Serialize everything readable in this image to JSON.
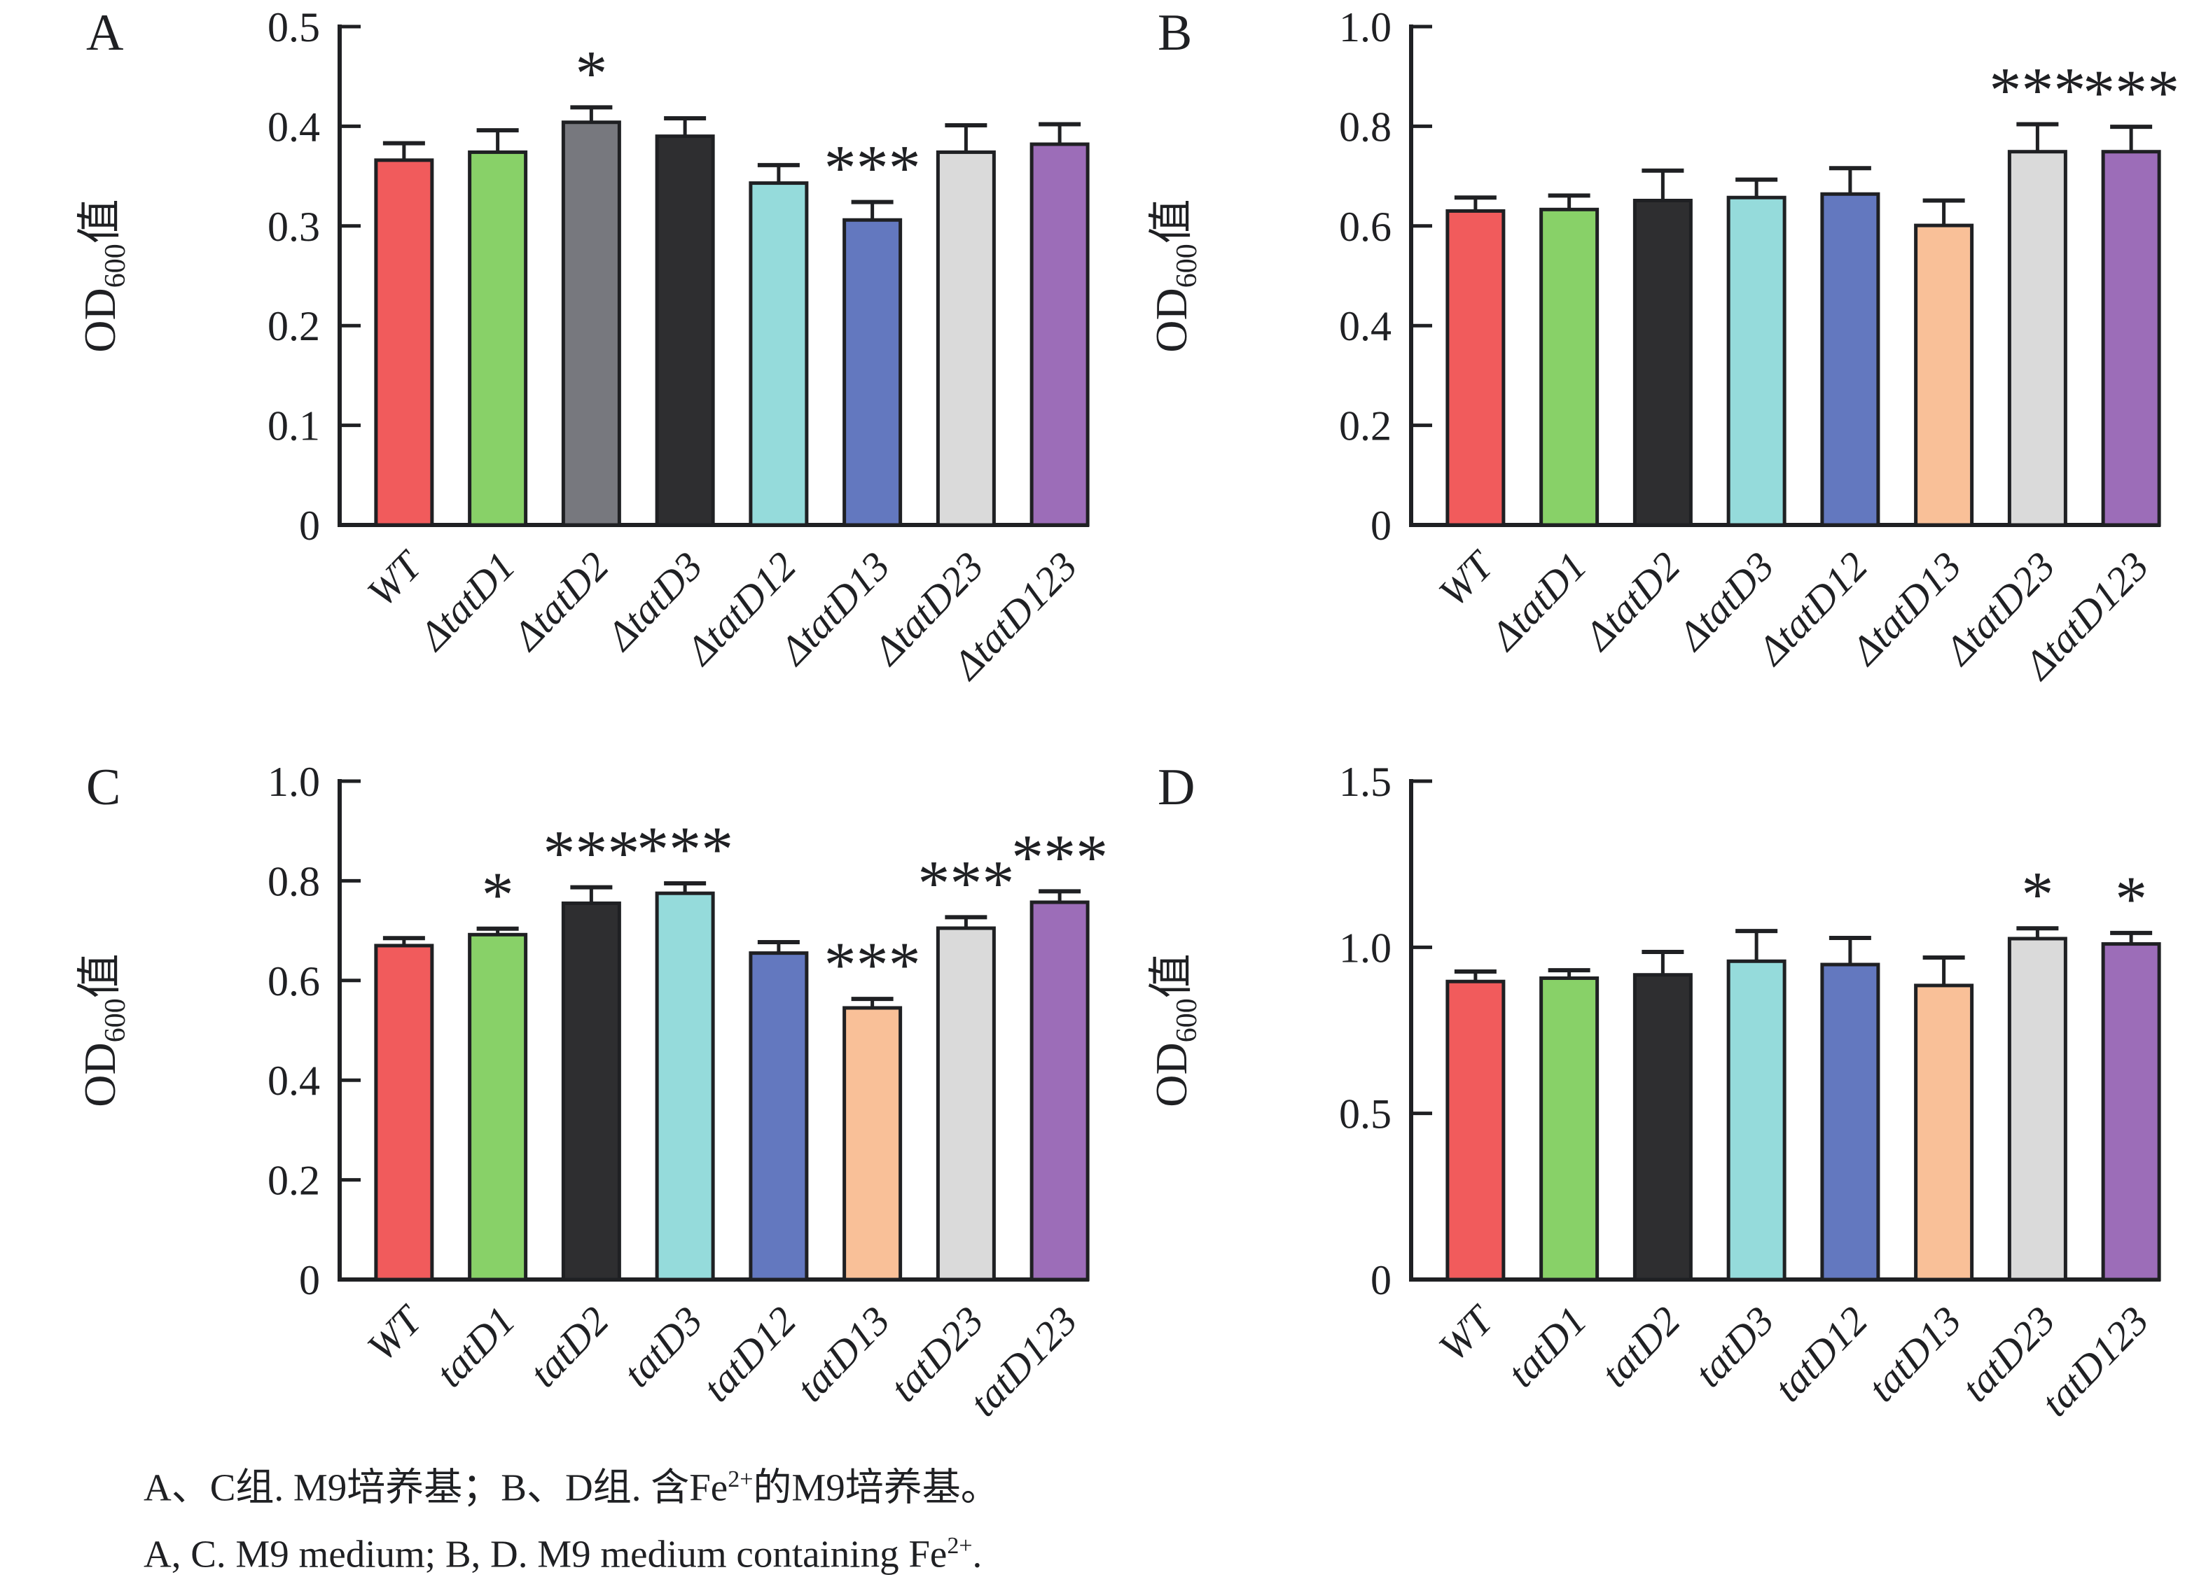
{
  "figure": {
    "ylabel_od": "OD",
    "ylabel_sub": "600",
    "ylabel_cjk": "值",
    "caption": {
      "line1_pre": "A、C组. M9培养基；B、D组. 含Fe",
      "line1_sup": "2+",
      "line1_post": "的M9培养基。",
      "line2_pre": "A, C. M9 medium; B, D. M9 medium containing Fe",
      "line2_sup": "2+",
      "line2_post": "."
    }
  },
  "chart_data": [
    {
      "panel_label": "A",
      "type": "bar",
      "title": "",
      "xlabel": "",
      "ylabel": "OD600值",
      "ylim": [
        0,
        0.5
      ],
      "ytick_values": [
        0,
        0.1,
        0.2,
        0.3,
        0.4,
        0.5
      ],
      "ytick_labels": [
        "0",
        "0.1",
        "0.2",
        "0.3",
        "0.4",
        "0.5"
      ],
      "grid": "off",
      "legend": "none",
      "categories": [
        "WT",
        "ΔtatD1",
        "ΔtatD2",
        "ΔtatD3",
        "ΔtatD12",
        "ΔtatD13",
        "ΔtatD23",
        "ΔtatD123"
      ],
      "values": [
        0.366,
        0.374,
        0.404,
        0.39,
        0.343,
        0.306,
        0.374,
        0.382
      ],
      "errors": [
        0.017,
        0.022,
        0.015,
        0.018,
        0.018,
        0.018,
        0.027,
        0.02
      ],
      "sig": [
        "",
        "",
        "*",
        "",
        "",
        "***",
        "",
        ""
      ],
      "bar_colors": [
        "#F15B5C",
        "#88D168",
        "#77787E",
        "#2E2E30",
        "#95DBDB",
        "#6378BF",
        "#DADADA",
        "#9C6DB8"
      ]
    },
    {
      "panel_label": "B",
      "type": "bar",
      "title": "",
      "xlabel": "",
      "ylabel": "OD600值",
      "ylim": [
        0,
        1.0
      ],
      "ytick_values": [
        0,
        0.2,
        0.4,
        0.6,
        0.8,
        1.0
      ],
      "ytick_labels": [
        "0",
        "0.2",
        "0.4",
        "0.6",
        "0.8",
        "1.0"
      ],
      "grid": "off",
      "legend": "none",
      "categories": [
        "WT",
        "ΔtatD1",
        "ΔtatD2",
        "ΔtatD3",
        "ΔtatD12",
        "ΔtatD13",
        "ΔtatD23",
        "ΔtatD123"
      ],
      "values": [
        0.63,
        0.633,
        0.651,
        0.657,
        0.664,
        0.601,
        0.749,
        0.749
      ],
      "errors": [
        0.027,
        0.028,
        0.06,
        0.036,
        0.052,
        0.05,
        0.055,
        0.05
      ],
      "sig": [
        "",
        "",
        "",
        "",
        "",
        "",
        "***",
        "***"
      ],
      "bar_colors": [
        "#F15B5C",
        "#88D168",
        "#2E2E30",
        "#95DBDB",
        "#6378BF",
        "#F9C098",
        "#DADADA",
        "#9C6DB8"
      ]
    },
    {
      "panel_label": "C",
      "type": "bar",
      "title": "",
      "xlabel": "",
      "ylabel": "OD600值",
      "ylim": [
        0,
        1.0
      ],
      "ytick_values": [
        0,
        0.2,
        0.4,
        0.6,
        0.8,
        1.0
      ],
      "ytick_labels": [
        "0",
        "0.2",
        "0.4",
        "0.6",
        "0.8",
        "1.0"
      ],
      "grid": "off",
      "legend": "none",
      "categories": [
        "WT",
        "tatD1",
        "tatD2",
        "tatD3",
        "tatD12",
        "tatD13",
        "tatD23",
        "tatD123"
      ],
      "values": [
        0.67,
        0.692,
        0.755,
        0.775,
        0.655,
        0.545,
        0.705,
        0.757
      ],
      "errors": [
        0.015,
        0.012,
        0.032,
        0.02,
        0.022,
        0.018,
        0.022,
        0.022
      ],
      "sig": [
        "",
        "*",
        "***",
        "***",
        "",
        "***",
        "***",
        "***"
      ],
      "bar_colors": [
        "#F15B5C",
        "#88D168",
        "#2E2E30",
        "#95DBDB",
        "#6378BF",
        "#F9C098",
        "#DADADA",
        "#9C6DB8"
      ]
    },
    {
      "panel_label": "D",
      "type": "bar",
      "title": "",
      "xlabel": "",
      "ylabel": "OD600值",
      "ylim": [
        0,
        1.5
      ],
      "ytick_values": [
        0,
        0.5,
        1.0,
        1.5
      ],
      "ytick_labels": [
        "0",
        "0.5",
        "1.0",
        "1.5"
      ],
      "grid": "off",
      "legend": "none",
      "categories": [
        "WT",
        "tatD1",
        "tatD2",
        "tatD3",
        "tatD12",
        "tatD13",
        "tatD23",
        "tatD123"
      ],
      "values": [
        0.897,
        0.907,
        0.917,
        0.958,
        0.948,
        0.885,
        1.026,
        1.01
      ],
      "errors": [
        0.03,
        0.024,
        0.069,
        0.091,
        0.08,
        0.084,
        0.031,
        0.033
      ],
      "sig": [
        "",
        "",
        "",
        "",
        "",
        "",
        "*",
        "*"
      ],
      "bar_colors": [
        "#F15B5C",
        "#88D168",
        "#2E2E30",
        "#95DBDB",
        "#6378BF",
        "#F9C098",
        "#DADADA",
        "#9C6DB8"
      ]
    }
  ]
}
